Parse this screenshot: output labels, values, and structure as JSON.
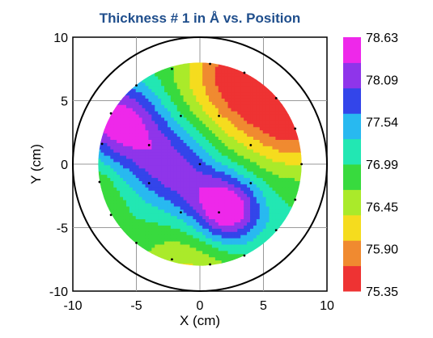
{
  "chart_data": {
    "type": "heatmap",
    "title": "Thickness # 1 in Å vs. Position",
    "xlabel": "X (cm)",
    "ylabel": "Y (cm)",
    "xlim": [
      -10,
      10
    ],
    "ylim": [
      -10,
      10
    ],
    "x_ticks": [
      "-10",
      "-5",
      "0",
      "5",
      "10"
    ],
    "y_ticks": [
      "10",
      "5",
      "0",
      "-5",
      "-10"
    ],
    "grid": true,
    "wafer_radius_cm": 10,
    "map_radius_cm": 8,
    "colorbar": {
      "labels": [
        "78.63",
        "78.09",
        "77.54",
        "76.99",
        "76.45",
        "75.90",
        "75.35"
      ],
      "min": 75.35,
      "max": 78.63,
      "colors": [
        "#ee3333",
        "#f08a30",
        "#f5dc1e",
        "#aaea2a",
        "#38da3e",
        "#22e7b3",
        "#28b9f0",
        "#3345ea",
        "#8f35ea",
        "#ee28ea"
      ]
    },
    "measurement_points": [
      {
        "x": 0,
        "y": 0
      },
      {
        "x": -4,
        "y": 1.5
      },
      {
        "x": -1.5,
        "y": 3.8
      },
      {
        "x": 1.5,
        "y": 3.8
      },
      {
        "x": 4,
        "y": 1.5
      },
      {
        "x": 4,
        "y": -1.5
      },
      {
        "x": 1.5,
        "y": -3.8
      },
      {
        "x": -1.5,
        "y": -3.8
      },
      {
        "x": -4,
        "y": -1.5
      },
      {
        "x": -2.2,
        "y": 7.5
      },
      {
        "x": 0.8,
        "y": 7.9
      },
      {
        "x": 3.5,
        "y": 7.2
      },
      {
        "x": 6,
        "y": 5.2
      },
      {
        "x": 7.5,
        "y": 2.8
      },
      {
        "x": 8,
        "y": 0
      },
      {
        "x": 7.5,
        "y": -2.8
      },
      {
        "x": 6,
        "y": -5.2
      },
      {
        "x": 3.5,
        "y": -7.2
      },
      {
        "x": 0.8,
        "y": -7.9
      },
      {
        "x": -2.2,
        "y": -7.5
      },
      {
        "x": -5,
        "y": -6.2
      },
      {
        "x": -7,
        "y": -4
      },
      {
        "x": -7.9,
        "y": -1.4
      },
      {
        "x": -7.7,
        "y": 1.6
      },
      {
        "x": -7,
        "y": 4
      },
      {
        "x": -5,
        "y": 6.2
      }
    ]
  }
}
